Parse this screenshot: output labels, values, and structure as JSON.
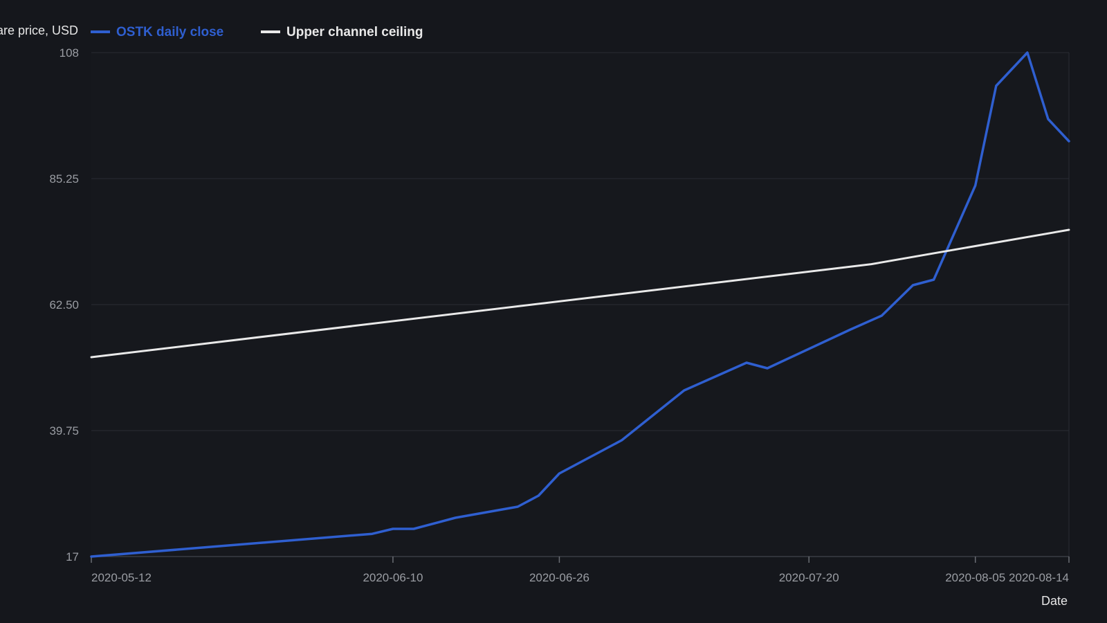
{
  "colors": {
    "background": "#15171c",
    "plot_background": "#16181d",
    "grid": "#2a2d33",
    "axis_text": "#9a9da3",
    "axis_title": "#e6e6e6",
    "series_primary": "#2f5fd0",
    "series_secondary": "#e9e9e9"
  },
  "chart_data": {
    "type": "line",
    "title": "",
    "xlabel": "Date",
    "ylabel": "Share price, USD",
    "ylim": [
      17,
      108
    ],
    "y_ticks": [
      "17",
      "39.75",
      "62.50",
      "85.25",
      "108"
    ],
    "x_ticks": [
      "2020-05-12",
      "2020-06-10",
      "2020-06-26",
      "2020-07-20",
      "2020-08-05",
      "2020-08-14"
    ],
    "grid": true,
    "legend_position": "top-left",
    "series": [
      {
        "name": "OSTK daily close",
        "color": "#2f5fd0",
        "x": [
          "2020-05-12",
          "2020-06-08",
          "2020-06-10",
          "2020-06-12",
          "2020-06-16",
          "2020-06-22",
          "2020-06-24",
          "2020-06-26",
          "2020-07-02",
          "2020-07-08",
          "2020-07-14",
          "2020-07-16",
          "2020-07-24",
          "2020-07-27",
          "2020-07-30",
          "2020-08-01",
          "2020-08-05",
          "2020-08-07",
          "2020-08-10",
          "2020-08-12",
          "2020-08-14"
        ],
        "values": [
          17.0,
          21.1,
          22.0,
          22.0,
          24.0,
          26.0,
          28.0,
          32.0,
          38.0,
          47.0,
          52.0,
          51.0,
          58.0,
          60.5,
          66.0,
          67.0,
          84.0,
          102.0,
          108.0,
          96.0,
          92.0
        ]
      },
      {
        "name": "Upper channel ceiling",
        "color": "#e9e9e9",
        "x": [
          "2020-05-12",
          "2020-07-26",
          "2020-08-14"
        ],
        "values": [
          53.0,
          69.8,
          76.0
        ]
      }
    ]
  }
}
